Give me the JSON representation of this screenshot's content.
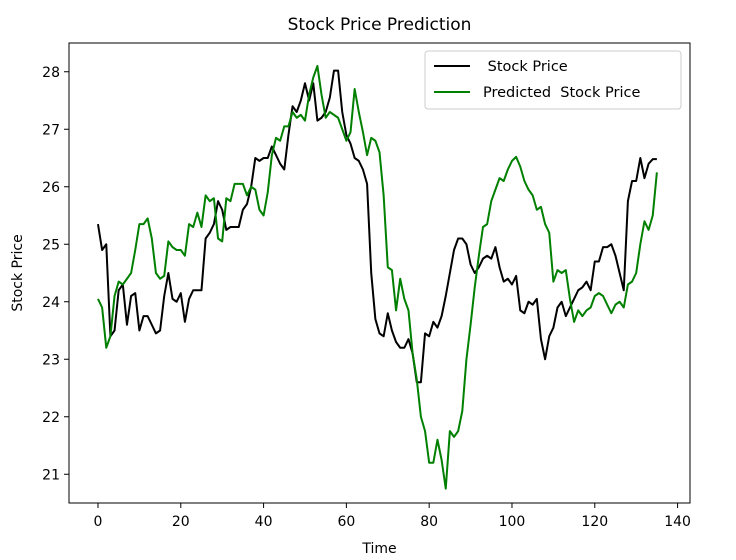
{
  "chart_data": {
    "type": "line",
    "title": "Stock Price Prediction",
    "xlabel": "Time",
    "ylabel": "Stock Price",
    "xlim": [
      -7,
      143
    ],
    "ylim": [
      20.5,
      28.5
    ],
    "xticks": [
      0,
      20,
      40,
      60,
      80,
      100,
      120,
      140
    ],
    "yticks": [
      21,
      22,
      23,
      24,
      25,
      26,
      27,
      28
    ],
    "legend_position": "top-right",
    "series": [
      {
        "name": " Stock Price",
        "color": "#000000",
        "points": [
          [
            0,
            25.35
          ],
          [
            1,
            24.9
          ],
          [
            2,
            25.0
          ],
          [
            3,
            23.4
          ],
          [
            4,
            23.5
          ],
          [
            5,
            24.2
          ],
          [
            6,
            24.3
          ],
          [
            7,
            23.6
          ],
          [
            8,
            24.1
          ],
          [
            9,
            24.15
          ],
          [
            10,
            23.5
          ],
          [
            11,
            23.75
          ],
          [
            12,
            23.75
          ],
          [
            13,
            23.6
          ],
          [
            14,
            23.45
          ],
          [
            15,
            23.5
          ],
          [
            16,
            24.1
          ],
          [
            17,
            24.5
          ],
          [
            18,
            24.05
          ],
          [
            19,
            24.0
          ],
          [
            20,
            24.15
          ],
          [
            21,
            23.65
          ],
          [
            22,
            24.05
          ],
          [
            23,
            24.2
          ],
          [
            24,
            24.2
          ],
          [
            25,
            24.2
          ],
          [
            26,
            25.1
          ],
          [
            27,
            25.2
          ],
          [
            28,
            25.35
          ],
          [
            29,
            25.75
          ],
          [
            30,
            25.6
          ],
          [
            31,
            25.25
          ],
          [
            32,
            25.3
          ],
          [
            33,
            25.3
          ],
          [
            34,
            25.3
          ],
          [
            35,
            25.6
          ],
          [
            36,
            25.7
          ],
          [
            37,
            26.0
          ],
          [
            38,
            26.5
          ],
          [
            39,
            26.45
          ],
          [
            40,
            26.5
          ],
          [
            41,
            26.5
          ],
          [
            42,
            26.7
          ],
          [
            43,
            26.55
          ],
          [
            44,
            26.4
          ],
          [
            45,
            26.3
          ],
          [
            46,
            26.9
          ],
          [
            47,
            27.4
          ],
          [
            48,
            27.3
          ],
          [
            49,
            27.5
          ],
          [
            50,
            27.8
          ],
          [
            51,
            27.5
          ],
          [
            52,
            27.8
          ],
          [
            53,
            27.15
          ],
          [
            54,
            27.2
          ],
          [
            55,
            27.3
          ],
          [
            56,
            27.55
          ],
          [
            57,
            28.02
          ],
          [
            58,
            28.02
          ],
          [
            59,
            27.3
          ],
          [
            60,
            26.9
          ],
          [
            61,
            26.75
          ],
          [
            62,
            26.5
          ],
          [
            63,
            26.45
          ],
          [
            64,
            26.3
          ],
          [
            65,
            26.05
          ],
          [
            66,
            24.5
          ],
          [
            67,
            23.7
          ],
          [
            68,
            23.45
          ],
          [
            69,
            23.4
          ],
          [
            70,
            23.8
          ],
          [
            71,
            23.5
          ],
          [
            72,
            23.3
          ],
          [
            73,
            23.2
          ],
          [
            74,
            23.2
          ],
          [
            75,
            23.35
          ],
          [
            76,
            23.1
          ],
          [
            77,
            22.6
          ],
          [
            78,
            22.6
          ],
          [
            79,
            23.45
          ],
          [
            80,
            23.4
          ],
          [
            81,
            23.65
          ],
          [
            82,
            23.55
          ],
          [
            83,
            23.75
          ],
          [
            84,
            24.1
          ],
          [
            85,
            24.5
          ],
          [
            86,
            24.9
          ],
          [
            87,
            25.1
          ],
          [
            88,
            25.1
          ],
          [
            89,
            25.0
          ],
          [
            90,
            24.65
          ],
          [
            91,
            24.5
          ],
          [
            92,
            24.6
          ],
          [
            93,
            24.75
          ],
          [
            94,
            24.8
          ],
          [
            95,
            24.75
          ],
          [
            96,
            24.95
          ],
          [
            97,
            24.6
          ],
          [
            98,
            24.35
          ],
          [
            99,
            24.4
          ],
          [
            100,
            24.3
          ],
          [
            101,
            24.45
          ],
          [
            102,
            23.85
          ],
          [
            103,
            23.8
          ],
          [
            104,
            24.0
          ],
          [
            105,
            23.95
          ],
          [
            106,
            24.05
          ],
          [
            107,
            23.35
          ],
          [
            108,
            23.0
          ],
          [
            109,
            23.4
          ],
          [
            110,
            23.55
          ],
          [
            111,
            23.9
          ],
          [
            112,
            24.0
          ],
          [
            113,
            23.75
          ],
          [
            114,
            23.9
          ],
          [
            115,
            24.05
          ],
          [
            116,
            24.2
          ],
          [
            117,
            24.25
          ],
          [
            118,
            24.35
          ],
          [
            119,
            24.2
          ],
          [
            120,
            24.7
          ],
          [
            121,
            24.7
          ],
          [
            122,
            24.95
          ],
          [
            123,
            24.95
          ],
          [
            124,
            25.0
          ],
          [
            125,
            24.8
          ],
          [
            126,
            24.5
          ],
          [
            127,
            24.2
          ],
          [
            128,
            25.75
          ],
          [
            129,
            26.1
          ],
          [
            130,
            26.1
          ],
          [
            131,
            26.5
          ],
          [
            132,
            26.15
          ],
          [
            133,
            26.4
          ],
          [
            134,
            26.48
          ],
          [
            135,
            26.48
          ]
        ]
      },
      {
        "name": "Predicted  Stock Price",
        "color": "#008000",
        "points": [
          [
            0,
            24.05
          ],
          [
            1,
            23.9
          ],
          [
            2,
            23.2
          ],
          [
            3,
            23.4
          ],
          [
            4,
            24.1
          ],
          [
            5,
            24.35
          ],
          [
            6,
            24.3
          ],
          [
            7,
            24.4
          ],
          [
            8,
            24.5
          ],
          [
            9,
            24.9
          ],
          [
            10,
            25.35
          ],
          [
            11,
            25.35
          ],
          [
            12,
            25.45
          ],
          [
            13,
            25.1
          ],
          [
            14,
            24.5
          ],
          [
            15,
            24.4
          ],
          [
            16,
            24.45
          ],
          [
            17,
            25.05
          ],
          [
            18,
            24.95
          ],
          [
            19,
            24.9
          ],
          [
            20,
            24.9
          ],
          [
            21,
            24.8
          ],
          [
            22,
            25.35
          ],
          [
            23,
            25.3
          ],
          [
            24,
            25.55
          ],
          [
            25,
            25.3
          ],
          [
            26,
            25.85
          ],
          [
            27,
            25.75
          ],
          [
            28,
            25.8
          ],
          [
            29,
            25.1
          ],
          [
            30,
            25.05
          ],
          [
            31,
            25.8
          ],
          [
            32,
            25.75
          ],
          [
            33,
            26.05
          ],
          [
            34,
            26.05
          ],
          [
            35,
            26.05
          ],
          [
            36,
            25.85
          ],
          [
            37,
            26.0
          ],
          [
            38,
            25.95
          ],
          [
            39,
            25.6
          ],
          [
            40,
            25.5
          ],
          [
            41,
            25.9
          ],
          [
            42,
            26.55
          ],
          [
            43,
            26.85
          ],
          [
            44,
            26.8
          ],
          [
            45,
            27.05
          ],
          [
            46,
            27.05
          ],
          [
            47,
            27.3
          ],
          [
            48,
            27.2
          ],
          [
            49,
            27.25
          ],
          [
            50,
            27.15
          ],
          [
            51,
            27.6
          ],
          [
            52,
            27.9
          ],
          [
            53,
            28.1
          ],
          [
            54,
            27.6
          ],
          [
            55,
            27.2
          ],
          [
            56,
            27.3
          ],
          [
            57,
            27.25
          ],
          [
            58,
            27.2
          ],
          [
            59,
            27.0
          ],
          [
            60,
            26.8
          ],
          [
            61,
            26.95
          ],
          [
            62,
            27.7
          ],
          [
            63,
            27.3
          ],
          [
            64,
            26.95
          ],
          [
            65,
            26.55
          ],
          [
            66,
            26.85
          ],
          [
            67,
            26.8
          ],
          [
            68,
            26.6
          ],
          [
            69,
            25.85
          ],
          [
            70,
            24.6
          ],
          [
            71,
            24.55
          ],
          [
            72,
            23.85
          ],
          [
            73,
            24.4
          ],
          [
            74,
            24.05
          ],
          [
            75,
            23.85
          ],
          [
            76,
            23.1
          ],
          [
            77,
            22.65
          ],
          [
            78,
            22.0
          ],
          [
            79,
            21.75
          ],
          [
            80,
            21.2
          ],
          [
            81,
            21.2
          ],
          [
            82,
            21.6
          ],
          [
            83,
            21.25
          ],
          [
            84,
            20.75
          ],
          [
            85,
            21.75
          ],
          [
            86,
            21.65
          ],
          [
            87,
            21.75
          ],
          [
            88,
            22.1
          ],
          [
            89,
            23.0
          ],
          [
            90,
            23.6
          ],
          [
            91,
            24.25
          ],
          [
            92,
            24.8
          ],
          [
            93,
            25.3
          ],
          [
            94,
            25.35
          ],
          [
            95,
            25.75
          ],
          [
            96,
            25.95
          ],
          [
            97,
            26.15
          ],
          [
            98,
            26.1
          ],
          [
            99,
            26.3
          ],
          [
            100,
            26.45
          ],
          [
            101,
            26.52
          ],
          [
            102,
            26.35
          ],
          [
            103,
            26.1
          ],
          [
            104,
            25.95
          ],
          [
            105,
            25.85
          ],
          [
            106,
            25.6
          ],
          [
            107,
            25.65
          ],
          [
            108,
            25.35
          ],
          [
            109,
            25.2
          ],
          [
            110,
            24.35
          ],
          [
            111,
            24.55
          ],
          [
            112,
            24.5
          ],
          [
            113,
            24.55
          ],
          [
            114,
            24.05
          ],
          [
            115,
            23.65
          ],
          [
            116,
            23.85
          ],
          [
            117,
            23.75
          ],
          [
            118,
            23.85
          ],
          [
            119,
            23.9
          ],
          [
            120,
            24.1
          ],
          [
            121,
            24.15
          ],
          [
            122,
            24.1
          ],
          [
            123,
            23.95
          ],
          [
            124,
            23.8
          ],
          [
            125,
            23.95
          ],
          [
            126,
            24.0
          ],
          [
            127,
            23.9
          ],
          [
            128,
            24.3
          ],
          [
            129,
            24.35
          ],
          [
            130,
            24.5
          ],
          [
            131,
            25.0
          ],
          [
            132,
            25.4
          ],
          [
            133,
            25.25
          ],
          [
            134,
            25.5
          ],
          [
            135,
            26.25
          ]
        ]
      }
    ]
  }
}
